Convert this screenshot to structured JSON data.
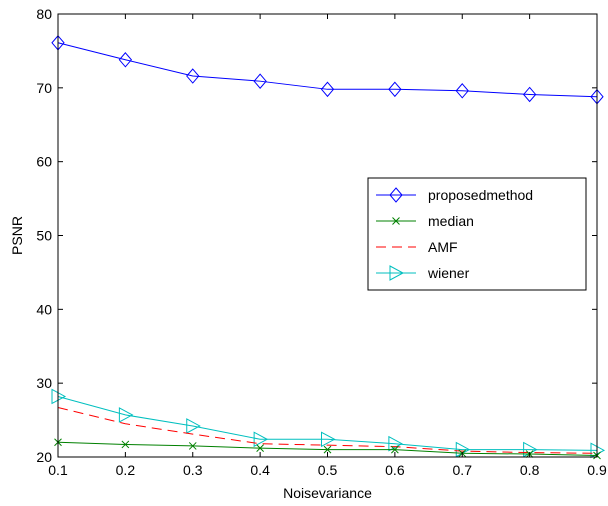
{
  "chart_data": {
    "type": "line",
    "title": "",
    "xlabel": "Noisevariance",
    "ylabel": "PSNR",
    "xlim": [
      0.1,
      0.9
    ],
    "ylim": [
      20,
      80
    ],
    "x": [
      0.1,
      0.2,
      0.3,
      0.4,
      0.5,
      0.6,
      0.7,
      0.8,
      0.9
    ],
    "xticks": [
      "0.1",
      "0.2",
      "0.3",
      "0.4",
      "0.5",
      "0.6",
      "0.7",
      "0.8",
      "0.9"
    ],
    "yticks": [
      "20",
      "30",
      "40",
      "50",
      "60",
      "70",
      "80"
    ],
    "grid": false,
    "legend_position": "right-middle",
    "series": [
      {
        "name": "proposedmethod",
        "color": "#0000ff",
        "marker": "diamond",
        "dash": "solid",
        "values": [
          76.1,
          73.8,
          71.6,
          70.9,
          69.8,
          69.8,
          69.6,
          69.1,
          68.8
        ]
      },
      {
        "name": "median",
        "color": "#008000",
        "marker": "x",
        "dash": "solid",
        "values": [
          22.0,
          21.7,
          21.5,
          21.2,
          21.0,
          21.0,
          20.5,
          20.4,
          20.2
        ]
      },
      {
        "name": "AMF",
        "color": "#ff0000",
        "marker": "none",
        "dash": "dashed",
        "values": [
          26.7,
          24.5,
          23.1,
          21.8,
          21.6,
          21.4,
          20.8,
          20.6,
          20.5
        ]
      },
      {
        "name": "wiener",
        "color": "#00bfbf",
        "marker": "triangle-right",
        "dash": "solid",
        "values": [
          28.2,
          25.7,
          24.2,
          22.4,
          22.4,
          21.8,
          21.0,
          21.0,
          20.9
        ]
      }
    ]
  }
}
